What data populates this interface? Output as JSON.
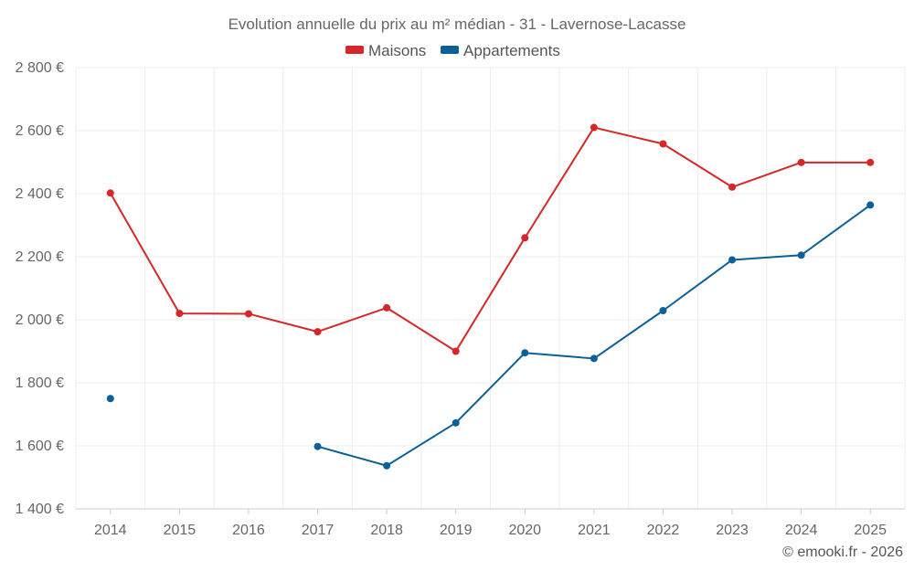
{
  "chart_data": {
    "type": "line",
    "title": "Evolution annuelle du prix au m² médian - 31 - Lavernose-Lacasse",
    "categories": [
      "2014",
      "2015",
      "2016",
      "2017",
      "2018",
      "2019",
      "2020",
      "2021",
      "2022",
      "2023",
      "2024",
      "2025"
    ],
    "y_tick_values": [
      1400,
      1600,
      1800,
      2000,
      2200,
      2400,
      2600,
      2800
    ],
    "y_tick_labels": [
      "1 400 €",
      "1 600 €",
      "1 800 €",
      "2 000 €",
      "2 200 €",
      "2 400 €",
      "2 600 €",
      "2 800 €"
    ],
    "ylim": [
      1400,
      2800
    ],
    "grid": true,
    "legend_position": "top-center",
    "series": [
      {
        "name": "Maisons",
        "color": "#d62728",
        "values": [
          2402,
          2020,
          2019,
          1962,
          2038,
          1900,
          2260,
          2610,
          2558,
          2421,
          2499,
          2499
        ]
      },
      {
        "name": "Appartements",
        "color": "#0b6197",
        "values": [
          1750,
          null,
          null,
          1598,
          1537,
          1673,
          1895,
          1877,
          2029,
          2190,
          2205,
          2364
        ]
      }
    ],
    "credit": "© emooki.fr - 2026"
  }
}
